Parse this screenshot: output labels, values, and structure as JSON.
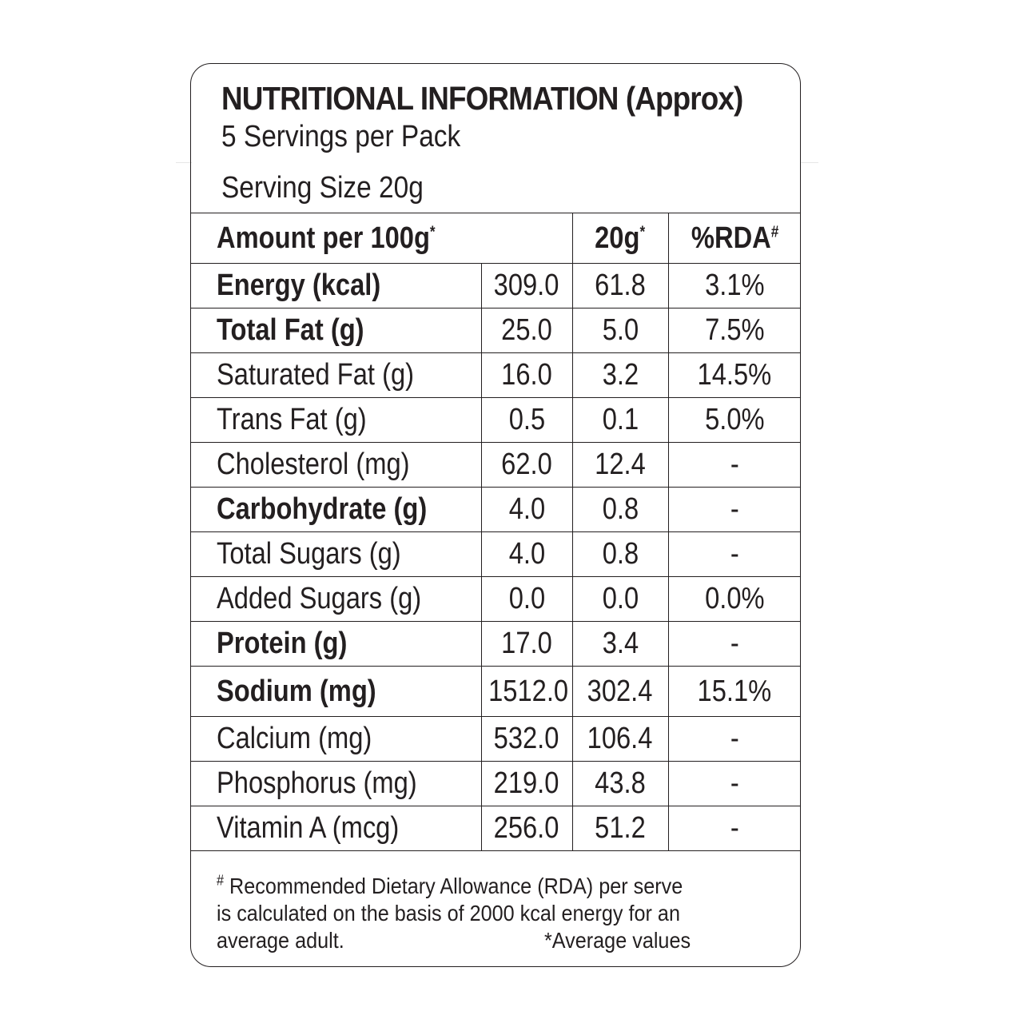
{
  "header": {
    "title": "NUTRITIONAL INFORMATION (Approx)",
    "servings": "5 Servings per Pack",
    "serving_size": "Serving Size 20g"
  },
  "table": {
    "col_headers": {
      "amount": "Amount per 100g",
      "amount_mark": "*",
      "serve": "20g",
      "serve_mark": "*",
      "rda": "%RDA",
      "rda_mark": "#"
    },
    "rows": [
      {
        "nutrient": "Energy (kcal)",
        "per100": "309.0",
        "per_serve": "61.8",
        "rda": "3.1%"
      },
      {
        "nutrient": "Total Fat (g)",
        "per100": "25.0",
        "per_serve": "5.0",
        "rda": "7.5%"
      },
      {
        "nutrient": "Saturated Fat (g)",
        "per100": "16.0",
        "per_serve": "3.2",
        "rda": "14.5%"
      },
      {
        "nutrient": "Trans Fat (g)",
        "per100": "0.5",
        "per_serve": "0.1",
        "rda": "5.0%"
      },
      {
        "nutrient": "Cholesterol (mg)",
        "per100": "62.0",
        "per_serve": "12.4",
        "rda": "-"
      },
      {
        "nutrient": "Carbohydrate (g)",
        "per100": "4.0",
        "per_serve": "0.8",
        "rda": "-"
      },
      {
        "nutrient": "Total Sugars (g)",
        "per100": "4.0",
        "per_serve": "0.8",
        "rda": "-"
      },
      {
        "nutrient": "Added Sugars (g)",
        "per100": "0.0",
        "per_serve": "0.0",
        "rda": "0.0%"
      },
      {
        "nutrient": "Protein (g)",
        "per100": "17.0",
        "per_serve": "3.4",
        "rda": "-"
      },
      {
        "nutrient": "Sodium (mg)",
        "per100": "1512.0",
        "per_serve": "302.4",
        "rda": "15.1%"
      },
      {
        "nutrient": "Calcium (mg)",
        "per100": "532.0",
        "per_serve": "106.4",
        "rda": "-"
      },
      {
        "nutrient": "Phosphorus (mg)",
        "per100": "219.0",
        "per_serve": "43.8",
        "rda": "-"
      },
      {
        "nutrient": "Vitamin A (mcg)",
        "per100": "256.0",
        "per_serve": "51.2",
        "rda": "-"
      }
    ]
  },
  "footnote": {
    "mark": "#",
    "line1": "Recommended Dietary Allowance (RDA) per serve",
    "line2": "is calculated on the basis of 2000 kcal energy for an",
    "line3": "average adult.",
    "average": "*Average values"
  }
}
